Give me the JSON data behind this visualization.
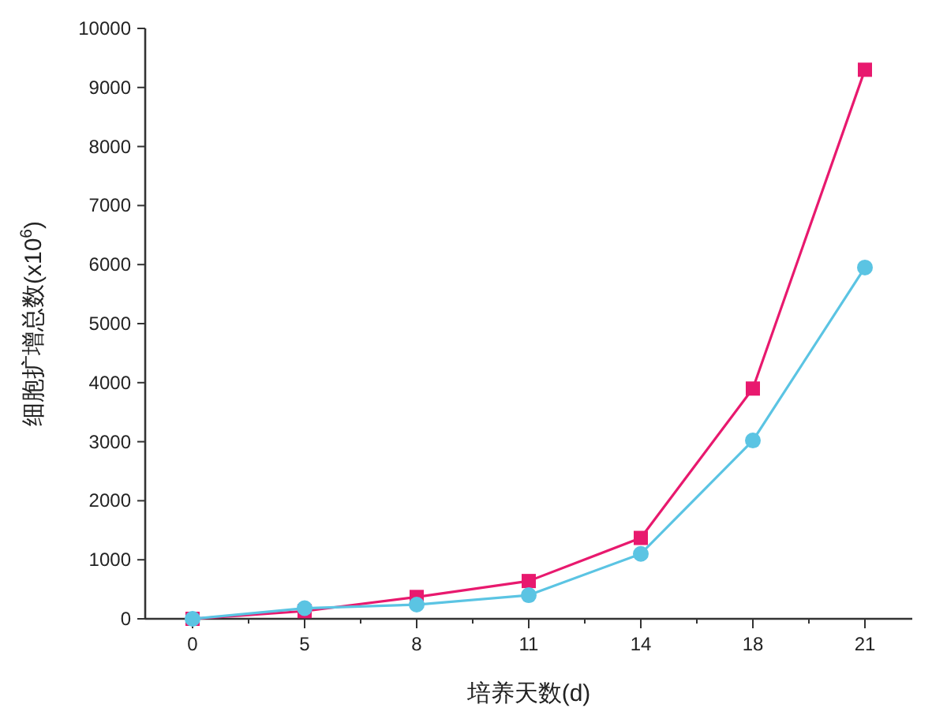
{
  "chart_data": {
    "type": "line",
    "xlabel": "培养天数(d)",
    "ylabel": "细胞扩增总数(x10$^{6}$)",
    "categories": [
      "0",
      "5",
      "8",
      "11",
      "14",
      "18",
      "21"
    ],
    "ylim": [
      0,
      10000
    ],
    "yticks": [
      0,
      1000,
      2000,
      3000,
      4000,
      5000,
      6000,
      7000,
      8000,
      9000,
      10000
    ],
    "grid": false,
    "line_style": "solid",
    "series": [
      {
        "color": "#e8196e",
        "marker": "square",
        "values": [
          0,
          130,
          370,
          640,
          1370,
          3900,
          9300
        ]
      },
      {
        "color": "#5bc4e3",
        "marker": "circle",
        "values": [
          0,
          180,
          240,
          400,
          1100,
          3020,
          5950
        ]
      }
    ]
  }
}
